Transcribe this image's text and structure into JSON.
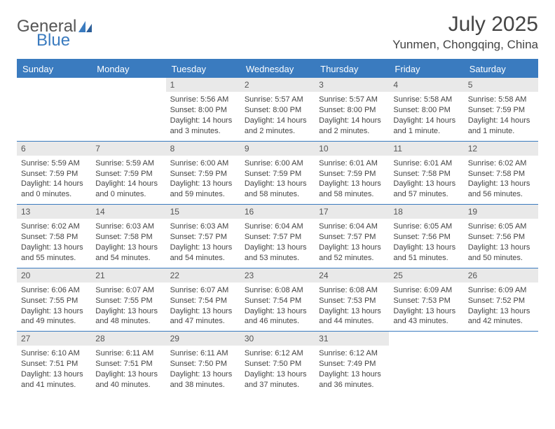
{
  "logo": {
    "text1": "General",
    "text2": "Blue"
  },
  "title": "July 2025",
  "location": "Yunmen, Chongqing, China",
  "colors": {
    "accent": "#3a7bbf",
    "dayhead_bg": "#3a7bbf",
    "dayhead_fg": "#ffffff",
    "daynum_bg": "#e9e9e9",
    "text": "#444444",
    "bg": "#ffffff"
  },
  "dayheads": [
    "Sunday",
    "Monday",
    "Tuesday",
    "Wednesday",
    "Thursday",
    "Friday",
    "Saturday"
  ],
  "weeks": [
    [
      {
        "empty": true
      },
      {
        "empty": true
      },
      {
        "n": "1",
        "sr": "Sunrise: 5:56 AM",
        "ss": "Sunset: 8:00 PM",
        "dl": "Daylight: 14 hours and 3 minutes."
      },
      {
        "n": "2",
        "sr": "Sunrise: 5:57 AM",
        "ss": "Sunset: 8:00 PM",
        "dl": "Daylight: 14 hours and 2 minutes."
      },
      {
        "n": "3",
        "sr": "Sunrise: 5:57 AM",
        "ss": "Sunset: 8:00 PM",
        "dl": "Daylight: 14 hours and 2 minutes."
      },
      {
        "n": "4",
        "sr": "Sunrise: 5:58 AM",
        "ss": "Sunset: 8:00 PM",
        "dl": "Daylight: 14 hours and 1 minute."
      },
      {
        "n": "5",
        "sr": "Sunrise: 5:58 AM",
        "ss": "Sunset: 7:59 PM",
        "dl": "Daylight: 14 hours and 1 minute."
      }
    ],
    [
      {
        "n": "6",
        "sr": "Sunrise: 5:59 AM",
        "ss": "Sunset: 7:59 PM",
        "dl": "Daylight: 14 hours and 0 minutes."
      },
      {
        "n": "7",
        "sr": "Sunrise: 5:59 AM",
        "ss": "Sunset: 7:59 PM",
        "dl": "Daylight: 14 hours and 0 minutes."
      },
      {
        "n": "8",
        "sr": "Sunrise: 6:00 AM",
        "ss": "Sunset: 7:59 PM",
        "dl": "Daylight: 13 hours and 59 minutes."
      },
      {
        "n": "9",
        "sr": "Sunrise: 6:00 AM",
        "ss": "Sunset: 7:59 PM",
        "dl": "Daylight: 13 hours and 58 minutes."
      },
      {
        "n": "10",
        "sr": "Sunrise: 6:01 AM",
        "ss": "Sunset: 7:59 PM",
        "dl": "Daylight: 13 hours and 58 minutes."
      },
      {
        "n": "11",
        "sr": "Sunrise: 6:01 AM",
        "ss": "Sunset: 7:58 PM",
        "dl": "Daylight: 13 hours and 57 minutes."
      },
      {
        "n": "12",
        "sr": "Sunrise: 6:02 AM",
        "ss": "Sunset: 7:58 PM",
        "dl": "Daylight: 13 hours and 56 minutes."
      }
    ],
    [
      {
        "n": "13",
        "sr": "Sunrise: 6:02 AM",
        "ss": "Sunset: 7:58 PM",
        "dl": "Daylight: 13 hours and 55 minutes."
      },
      {
        "n": "14",
        "sr": "Sunrise: 6:03 AM",
        "ss": "Sunset: 7:58 PM",
        "dl": "Daylight: 13 hours and 54 minutes."
      },
      {
        "n": "15",
        "sr": "Sunrise: 6:03 AM",
        "ss": "Sunset: 7:57 PM",
        "dl": "Daylight: 13 hours and 54 minutes."
      },
      {
        "n": "16",
        "sr": "Sunrise: 6:04 AM",
        "ss": "Sunset: 7:57 PM",
        "dl": "Daylight: 13 hours and 53 minutes."
      },
      {
        "n": "17",
        "sr": "Sunrise: 6:04 AM",
        "ss": "Sunset: 7:57 PM",
        "dl": "Daylight: 13 hours and 52 minutes."
      },
      {
        "n": "18",
        "sr": "Sunrise: 6:05 AM",
        "ss": "Sunset: 7:56 PM",
        "dl": "Daylight: 13 hours and 51 minutes."
      },
      {
        "n": "19",
        "sr": "Sunrise: 6:05 AM",
        "ss": "Sunset: 7:56 PM",
        "dl": "Daylight: 13 hours and 50 minutes."
      }
    ],
    [
      {
        "n": "20",
        "sr": "Sunrise: 6:06 AM",
        "ss": "Sunset: 7:55 PM",
        "dl": "Daylight: 13 hours and 49 minutes."
      },
      {
        "n": "21",
        "sr": "Sunrise: 6:07 AM",
        "ss": "Sunset: 7:55 PM",
        "dl": "Daylight: 13 hours and 48 minutes."
      },
      {
        "n": "22",
        "sr": "Sunrise: 6:07 AM",
        "ss": "Sunset: 7:54 PM",
        "dl": "Daylight: 13 hours and 47 minutes."
      },
      {
        "n": "23",
        "sr": "Sunrise: 6:08 AM",
        "ss": "Sunset: 7:54 PM",
        "dl": "Daylight: 13 hours and 46 minutes."
      },
      {
        "n": "24",
        "sr": "Sunrise: 6:08 AM",
        "ss": "Sunset: 7:53 PM",
        "dl": "Daylight: 13 hours and 44 minutes."
      },
      {
        "n": "25",
        "sr": "Sunrise: 6:09 AM",
        "ss": "Sunset: 7:53 PM",
        "dl": "Daylight: 13 hours and 43 minutes."
      },
      {
        "n": "26",
        "sr": "Sunrise: 6:09 AM",
        "ss": "Sunset: 7:52 PM",
        "dl": "Daylight: 13 hours and 42 minutes."
      }
    ],
    [
      {
        "n": "27",
        "sr": "Sunrise: 6:10 AM",
        "ss": "Sunset: 7:51 PM",
        "dl": "Daylight: 13 hours and 41 minutes."
      },
      {
        "n": "28",
        "sr": "Sunrise: 6:11 AM",
        "ss": "Sunset: 7:51 PM",
        "dl": "Daylight: 13 hours and 40 minutes."
      },
      {
        "n": "29",
        "sr": "Sunrise: 6:11 AM",
        "ss": "Sunset: 7:50 PM",
        "dl": "Daylight: 13 hours and 38 minutes."
      },
      {
        "n": "30",
        "sr": "Sunrise: 6:12 AM",
        "ss": "Sunset: 7:50 PM",
        "dl": "Daylight: 13 hours and 37 minutes."
      },
      {
        "n": "31",
        "sr": "Sunrise: 6:12 AM",
        "ss": "Sunset: 7:49 PM",
        "dl": "Daylight: 13 hours and 36 minutes."
      },
      {
        "empty": true
      },
      {
        "empty": true
      }
    ]
  ]
}
